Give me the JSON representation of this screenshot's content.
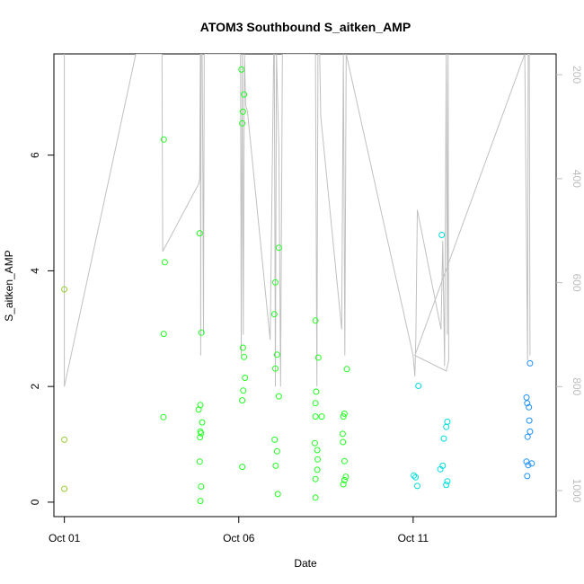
{
  "chart_data": {
    "type": "scatter",
    "title": "ATOM3 Southbound S_aitken_AMP",
    "xlabel": "Date",
    "ylabel": "S_aitken_AMP",
    "x_ticks": [
      {
        "value": 1,
        "label": "Oct 01"
      },
      {
        "value": 6,
        "label": "Oct 06"
      },
      {
        "value": 11,
        "label": "Oct 11"
      }
    ],
    "y_ticks": [
      0,
      2,
      4,
      6
    ],
    "y2_ticks": [
      200,
      400,
      600,
      800,
      1000
    ],
    "xlim": [
      0.7,
      15.1
    ],
    "ylim": [
      -0.25,
      7.75
    ],
    "y2lim": [
      1050,
      160
    ],
    "grid": false,
    "points": [
      {
        "x": 1.0,
        "y": 3.68
      },
      {
        "x": 1.0,
        "y": 1.08
      },
      {
        "x": 1.0,
        "y": 0.23
      },
      {
        "x": 3.85,
        "y": 6.27
      },
      {
        "x": 3.88,
        "y": 4.15
      },
      {
        "x": 3.85,
        "y": 2.91
      },
      {
        "x": 3.84,
        "y": 1.47
      },
      {
        "x": 4.88,
        "y": 4.65
      },
      {
        "x": 4.93,
        "y": 2.93
      },
      {
        "x": 4.85,
        "y": 1.6
      },
      {
        "x": 4.9,
        "y": 1.68
      },
      {
        "x": 4.95,
        "y": 1.38
      },
      {
        "x": 4.9,
        "y": 1.22
      },
      {
        "x": 4.92,
        "y": 1.19
      },
      {
        "x": 4.89,
        "y": 1.12
      },
      {
        "x": 4.88,
        "y": 0.7
      },
      {
        "x": 4.92,
        "y": 0.27
      },
      {
        "x": 4.9,
        "y": 0.02
      },
      {
        "x": 6.08,
        "y": 7.48
      },
      {
        "x": 6.15,
        "y": 7.05
      },
      {
        "x": 6.12,
        "y": 6.75
      },
      {
        "x": 6.1,
        "y": 6.55
      },
      {
        "x": 6.12,
        "y": 2.67
      },
      {
        "x": 6.15,
        "y": 2.51
      },
      {
        "x": 6.18,
        "y": 2.15
      },
      {
        "x": 6.13,
        "y": 1.93
      },
      {
        "x": 6.1,
        "y": 1.76
      },
      {
        "x": 6.1,
        "y": 0.61
      },
      {
        "x": 7.15,
        "y": 4.4
      },
      {
        "x": 7.05,
        "y": 3.8
      },
      {
        "x": 7.02,
        "y": 3.25
      },
      {
        "x": 7.1,
        "y": 2.55
      },
      {
        "x": 7.05,
        "y": 2.31
      },
      {
        "x": 7.15,
        "y": 1.83
      },
      {
        "x": 7.03,
        "y": 1.08
      },
      {
        "x": 7.1,
        "y": 0.88
      },
      {
        "x": 7.06,
        "y": 0.63
      },
      {
        "x": 7.12,
        "y": 0.14
      },
      {
        "x": 8.2,
        "y": 3.14
      },
      {
        "x": 8.28,
        "y": 2.5
      },
      {
        "x": 8.22,
        "y": 1.91
      },
      {
        "x": 8.2,
        "y": 1.71
      },
      {
        "x": 8.2,
        "y": 1.48
      },
      {
        "x": 8.38,
        "y": 1.48
      },
      {
        "x": 8.18,
        "y": 1.02
      },
      {
        "x": 8.25,
        "y": 0.9
      },
      {
        "x": 8.26,
        "y": 0.74
      },
      {
        "x": 8.25,
        "y": 0.56
      },
      {
        "x": 8.2,
        "y": 0.4
      },
      {
        "x": 8.2,
        "y": 0.08
      },
      {
        "x": 9.1,
        "y": 2.3
      },
      {
        "x": 9.03,
        "y": 1.53
      },
      {
        "x": 9.0,
        "y": 1.48
      },
      {
        "x": 8.98,
        "y": 1.18
      },
      {
        "x": 8.99,
        "y": 1.04
      },
      {
        "x": 9.03,
        "y": 0.71
      },
      {
        "x": 9.07,
        "y": 0.44
      },
      {
        "x": 9.03,
        "y": 0.38
      },
      {
        "x": 9.0,
        "y": 0.31
      },
      {
        "x": 11.15,
        "y": 2.01
      },
      {
        "x": 11.02,
        "y": 0.46
      },
      {
        "x": 11.07,
        "y": 0.43
      },
      {
        "x": 11.12,
        "y": 0.28
      },
      {
        "x": 11.82,
        "y": 4.62
      },
      {
        "x": 11.98,
        "y": 1.39
      },
      {
        "x": 11.95,
        "y": 1.3
      },
      {
        "x": 11.88,
        "y": 1.1
      },
      {
        "x": 11.85,
        "y": 0.63
      },
      {
        "x": 11.78,
        "y": 0.57
      },
      {
        "x": 11.98,
        "y": 0.36
      },
      {
        "x": 11.95,
        "y": 0.3
      },
      {
        "x": 14.35,
        "y": 2.4
      },
      {
        "x": 14.25,
        "y": 1.81
      },
      {
        "x": 14.27,
        "y": 1.71
      },
      {
        "x": 14.32,
        "y": 1.64
      },
      {
        "x": 14.33,
        "y": 1.41
      },
      {
        "x": 14.35,
        "y": 1.22
      },
      {
        "x": 14.28,
        "y": 1.13
      },
      {
        "x": 14.25,
        "y": 0.7
      },
      {
        "x": 14.3,
        "y": 0.64
      },
      {
        "x": 14.4,
        "y": 0.67
      },
      {
        "x": 14.27,
        "y": 0.45
      }
    ],
    "line_series": {
      "axis": "right",
      "points": [
        [
          1.0,
          160
        ],
        [
          1.0,
          800
        ],
        [
          3.05,
          160
        ],
        [
          3.8,
          160
        ],
        [
          3.82,
          540
        ],
        [
          4.85,
          410
        ],
        [
          4.88,
          400
        ],
        [
          4.9,
          160
        ],
        [
          4.91,
          740
        ],
        [
          4.92,
          160
        ],
        [
          4.95,
          160
        ],
        [
          4.97,
          390
        ],
        [
          4.99,
          700
        ],
        [
          5.01,
          160
        ],
        [
          6.05,
          160
        ],
        [
          6.07,
          740
        ],
        [
          6.1,
          160
        ],
        [
          6.13,
          700
        ],
        [
          6.16,
          160
        ],
        [
          6.2,
          260
        ],
        [
          6.25,
          270
        ],
        [
          6.9,
          710
        ],
        [
          7.0,
          160
        ],
        [
          7.02,
          160
        ],
        [
          7.05,
          800
        ],
        [
          7.08,
          160
        ],
        [
          7.15,
          340
        ],
        [
          7.2,
          800
        ],
        [
          7.25,
          160
        ],
        [
          8.2,
          160
        ],
        [
          8.24,
          800
        ],
        [
          8.27,
          160
        ],
        [
          8.32,
          160
        ],
        [
          8.35,
          280
        ],
        [
          8.95,
          690
        ],
        [
          9.0,
          160
        ],
        [
          9.04,
          740
        ],
        [
          9.08,
          160
        ],
        [
          11.0,
          740
        ],
        [
          11.05,
          780
        ],
        [
          11.08,
          700
        ],
        [
          11.12,
          460
        ],
        [
          11.8,
          690
        ],
        [
          11.85,
          520
        ],
        [
          11.9,
          760
        ],
        [
          11.95,
          160
        ],
        [
          11.98,
          700
        ],
        [
          12.0,
          160
        ],
        [
          12.02,
          750
        ],
        [
          11.95,
          770
        ],
        [
          11.05,
          740
        ],
        [
          14.2,
          160
        ],
        [
          14.28,
          750
        ],
        [
          14.3,
          160
        ],
        [
          14.33,
          160
        ],
        [
          14.35,
          740
        ]
      ]
    },
    "colors": {
      "early": "#9ACD32",
      "mid": "#22FF22",
      "late": "#00DDDD",
      "end": "#1E90FF",
      "line": "#c0c0c0"
    }
  }
}
